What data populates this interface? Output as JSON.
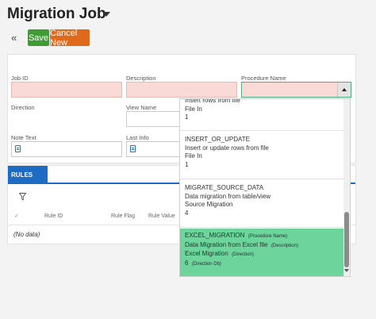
{
  "page": {
    "title": "Migration Job"
  },
  "toolbar": {
    "save_label": "Save",
    "cancel_label": "Cancel New"
  },
  "form": {
    "job_id_label": "Job ID",
    "description_label": "Description",
    "procedure_name_label": "Procedure Name",
    "direction_label": "Direction",
    "view_name_label": "View Name",
    "note_text_label": "Note Text",
    "last_info_label": "Last Info"
  },
  "dropdown": {
    "options": [
      {
        "name": "Insert rows from file",
        "desc": "File In",
        "num": "1"
      },
      {
        "name": "INSERT_OR_UPDATE",
        "desc": "Insert or update rows from file",
        "dir": "File In",
        "num": "1"
      },
      {
        "name": "MIGRATE_SOURCE_DATA",
        "desc": "Data migration from table/view",
        "dir": "Source Migration",
        "num": "4"
      },
      {
        "name": "EXCEL_MIGRATION",
        "desc": "Data Migration from Excel file",
        "dir": "Excel Migration",
        "num": "6",
        "name_tag": "(Procedure Name)",
        "desc_tag": "(Description)",
        "dir_tag": "(Direction)",
        "num_tag": "(Direction Db)"
      }
    ]
  },
  "rules": {
    "tab_label": "RULES",
    "columns": [
      "Rule ID",
      "Rule Flag",
      "Rule Value"
    ],
    "empty_text": "(No data)"
  },
  "colors": {
    "save": "#3f9b34",
    "cancel": "#e06a1c",
    "accent": "#1d6bc3",
    "selected": "#6dd49b",
    "required": "#fadad6"
  }
}
